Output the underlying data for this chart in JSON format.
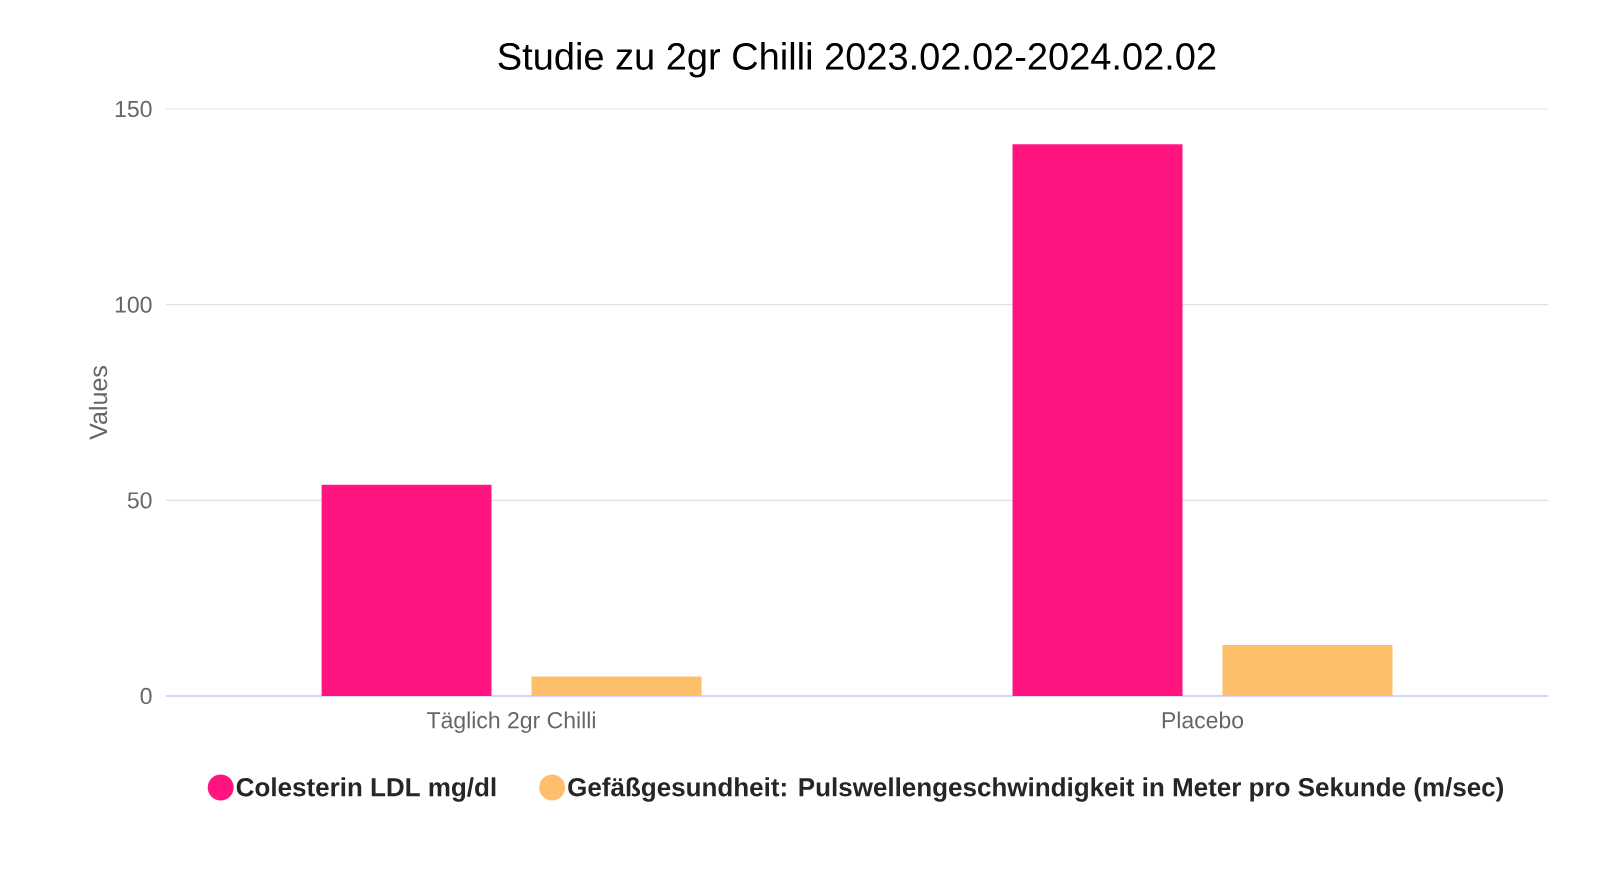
{
  "chart_data": {
    "type": "bar",
    "title": "Studie zu 2gr Chilli 2023.02.02-2024.02.02",
    "ylabel": "Values",
    "categories": [
      "Täglich 2gr Chilli",
      "Placebo"
    ],
    "series": [
      {
        "name": "Colesterin LDL mg/dl",
        "color": "#ff1480",
        "values": [
          54,
          141
        ]
      },
      {
        "name": "Gefäßgesundheit: Pulswellengeschwindigkeit in Meter pro Sekunde (m/sec)",
        "color": "#fdbf6a",
        "values": [
          5,
          13
        ]
      }
    ],
    "ylim": [
      0,
      150
    ],
    "yticks": [
      0,
      50,
      100,
      150
    ],
    "grid": "y",
    "legend": "bottom"
  }
}
